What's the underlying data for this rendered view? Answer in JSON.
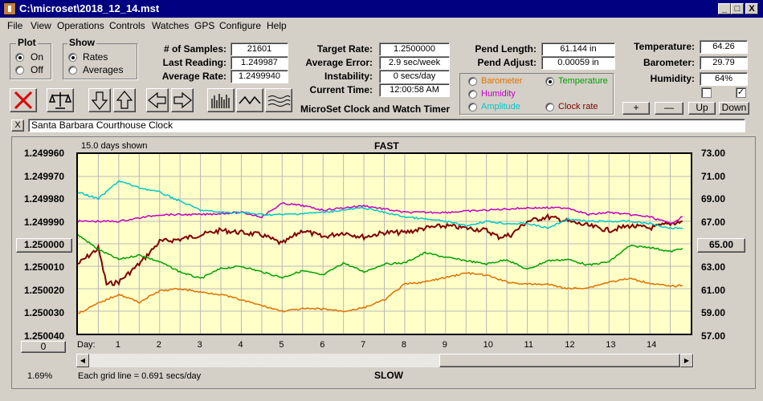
{
  "window": {
    "title": "C:\\microset\\2018_12_14.mst",
    "min_label": "_",
    "max_label": "□",
    "close_label": "X"
  },
  "menu": [
    "File",
    "View",
    "Operations",
    "Controls",
    "Watches",
    "GPS",
    "Configure",
    "Help"
  ],
  "plot_group": {
    "title": "Plot",
    "options": [
      "On",
      "Off"
    ],
    "selected": "On"
  },
  "show_group": {
    "title": "Show",
    "options": [
      "Rates",
      "Averages"
    ],
    "selected": "Rates"
  },
  "stats_left": [
    {
      "label": "# of Samples:",
      "value": "21601"
    },
    {
      "label": "Last Reading:",
      "value": "1.249987"
    },
    {
      "label": "Average Rate:",
      "value": "1.2499940"
    }
  ],
  "stats_mid": [
    {
      "label": "Target Rate:",
      "value": "1.2500000"
    },
    {
      "label": "Average Error:",
      "value": "2.9 sec/week"
    },
    {
      "label": "Instability:",
      "value": "0 secs/day"
    },
    {
      "label": "Current Time:",
      "value": "12:00:58 AM"
    }
  ],
  "pend": [
    {
      "label": "Pend Length:",
      "value": "61.144 in"
    },
    {
      "label": "Pend Adjust:",
      "value": "0.00059 in"
    }
  ],
  "env": [
    {
      "label": "Temperature:",
      "value": "64.26"
    },
    {
      "label": "Barometer:",
      "value": "29.79"
    },
    {
      "label": "Humidity:",
      "value": "64%"
    }
  ],
  "app_caption": "MicroSet Clock and Watch Timer",
  "sensor_options": [
    {
      "label": "Barometer",
      "color": "#e07000",
      "selected": false
    },
    {
      "label": "Temperature",
      "color": "#00a000",
      "selected": true
    },
    {
      "label": "Humidity",
      "color": "#c000c0",
      "selected": false
    },
    {
      "label": "Amplitude",
      "color": "#00c8c8",
      "selected": false
    },
    {
      "label": "Clock rate",
      "color": "#800000",
      "selected": false
    }
  ],
  "env_buttons": [
    "+",
    "—",
    "Up",
    "Down"
  ],
  "env_checks": [
    false,
    true
  ],
  "clock_name": "Santa Barbara Courthouse Clock",
  "clear_label": "X",
  "plot": {
    "days_shown": "15.0 days shown",
    "top_label": "FAST",
    "bottom_label": "SLOW",
    "left_ticks": [
      "1.249960",
      "1.249970",
      "1.249980",
      "1.249990",
      "1.250000",
      "1.250010",
      "1.250020",
      "1.250030",
      "1.250040"
    ],
    "right_ticks": [
      "73.00",
      "71.00",
      "69.00",
      "67.00",
      "65.00",
      "63.00",
      "61.00",
      "59.00",
      "57.00"
    ],
    "center_left_button": "1.250000",
    "center_right_button": "65.00",
    "zero_button": "0",
    "day_label": "Day:",
    "days": [
      "1",
      "2",
      "3",
      "4",
      "5",
      "6",
      "7",
      "8",
      "9",
      "10",
      "11",
      "12",
      "13",
      "14"
    ],
    "percent": "1.69%",
    "grid_note": "Each grid line = 0.691 secs/day"
  },
  "chart_data": {
    "type": "line",
    "xlabel": "Day:",
    "x_range": [
      0,
      15
    ],
    "y_left_range": [
      1.24996,
      1.25004
    ],
    "y_right_range": [
      57,
      73
    ],
    "grid": true,
    "series": [
      {
        "name": "Clock rate",
        "color": "#800000",
        "axis": "left",
        "x": [
          0,
          0.5,
          0.7,
          1,
          1.5,
          2,
          2.5,
          3,
          3.5,
          4,
          4.5,
          5,
          5.5,
          6,
          6.5,
          7,
          7.5,
          8,
          8.5,
          9,
          9.5,
          10,
          10.3,
          10.6,
          11,
          11.5,
          12,
          12.5,
          13,
          13.5,
          14,
          14.5,
          14.8
        ],
        "y": [
          1.250009,
          1.250002,
          1.250018,
          1.250017,
          1.250009,
          1.249999,
          1.249998,
          1.249996,
          1.249994,
          1.249995,
          1.249996,
          1.25,
          1.249994,
          1.249997,
          1.249995,
          1.249997,
          1.249995,
          1.249995,
          1.249993,
          1.249992,
          1.249993,
          1.249994,
          1.249997,
          1.249996,
          1.24999,
          1.249988,
          1.24999,
          1.249992,
          1.249994,
          1.249992,
          1.249993,
          1.249991,
          1.24999
        ]
      },
      {
        "name": "Temperature",
        "color": "#00a000",
        "axis": "right",
        "x": [
          0,
          0.5,
          1,
          1.5,
          2,
          2.5,
          3,
          3.5,
          4,
          4.5,
          5,
          5.5,
          6,
          6.5,
          7,
          7.5,
          8,
          8.5,
          9,
          9.5,
          10,
          10.5,
          11,
          11.5,
          12,
          12.5,
          13,
          13.5,
          14,
          14.5,
          14.8
        ],
        "y": [
          65.8,
          64.5,
          63.6,
          64.0,
          63.4,
          62.5,
          61.9,
          62.8,
          63.0,
          62.5,
          62.0,
          62.6,
          62.2,
          63.3,
          62.5,
          63.2,
          63.3,
          64.2,
          63.8,
          63.5,
          63.2,
          63.6,
          62.7,
          63.5,
          63.6,
          63.1,
          63.4,
          64.8,
          64.7,
          64.3,
          64.6
        ]
      },
      {
        "name": "Humidity",
        "color": "#c000c0",
        "axis": "left",
        "x": [
          0,
          1,
          2,
          3,
          4,
          4.5,
          5,
          5.5,
          6,
          7,
          8,
          9,
          10,
          11,
          12,
          12.5,
          13,
          13.5,
          14,
          14.5,
          14.8
        ],
        "y": [
          1.24999,
          1.24999,
          1.249987,
          1.249987,
          1.249986,
          1.249988,
          1.249982,
          1.249983,
          1.249985,
          1.249983,
          1.249986,
          1.249986,
          1.249985,
          1.249984,
          1.249984,
          1.249987,
          1.249986,
          1.249987,
          1.249988,
          1.249991,
          1.249988
        ]
      },
      {
        "name": "Amplitude",
        "color": "#00c8c8",
        "axis": "left",
        "x": [
          0,
          0.5,
          1,
          1.5,
          2,
          2.5,
          3,
          3.5,
          4,
          4.5,
          5,
          6,
          7,
          8,
          9,
          9.5,
          10,
          10.5,
          11,
          11.5,
          12,
          12.5,
          13,
          13.5,
          14,
          14.5,
          14.8
        ],
        "y": [
          1.249977,
          1.24998,
          1.249972,
          1.249975,
          1.249977,
          1.249981,
          1.249985,
          1.249986,
          1.249986,
          1.249987,
          1.249987,
          1.249986,
          1.249984,
          1.249988,
          1.24999,
          1.249992,
          1.24999,
          1.249991,
          1.249991,
          1.249993,
          1.249989,
          1.24999,
          1.24999,
          1.24999,
          1.249991,
          1.249993,
          1.249993
        ]
      },
      {
        "name": "Barometer",
        "color": "#e07000",
        "axis": "right",
        "x": [
          0,
          0.5,
          1,
          1.5,
          2,
          2.5,
          3,
          3.5,
          4,
          4.5,
          5,
          5.5,
          6,
          6.5,
          7,
          7.5,
          8,
          8.5,
          9,
          9.5,
          10,
          10.5,
          11,
          11.5,
          12,
          12.5,
          13,
          13.5,
          14,
          14.5,
          14.8
        ],
        "y": [
          58.8,
          59.7,
          60.5,
          59.8,
          60.8,
          61.0,
          60.7,
          60.5,
          60.0,
          59.5,
          59.0,
          59.2,
          59.2,
          59.0,
          59.3,
          60.0,
          61.4,
          61.6,
          62.0,
          62.4,
          62.2,
          61.6,
          61.4,
          61.4,
          61.0,
          61.1,
          61.6,
          61.9,
          61.5,
          61.2,
          61.3
        ]
      }
    ]
  }
}
